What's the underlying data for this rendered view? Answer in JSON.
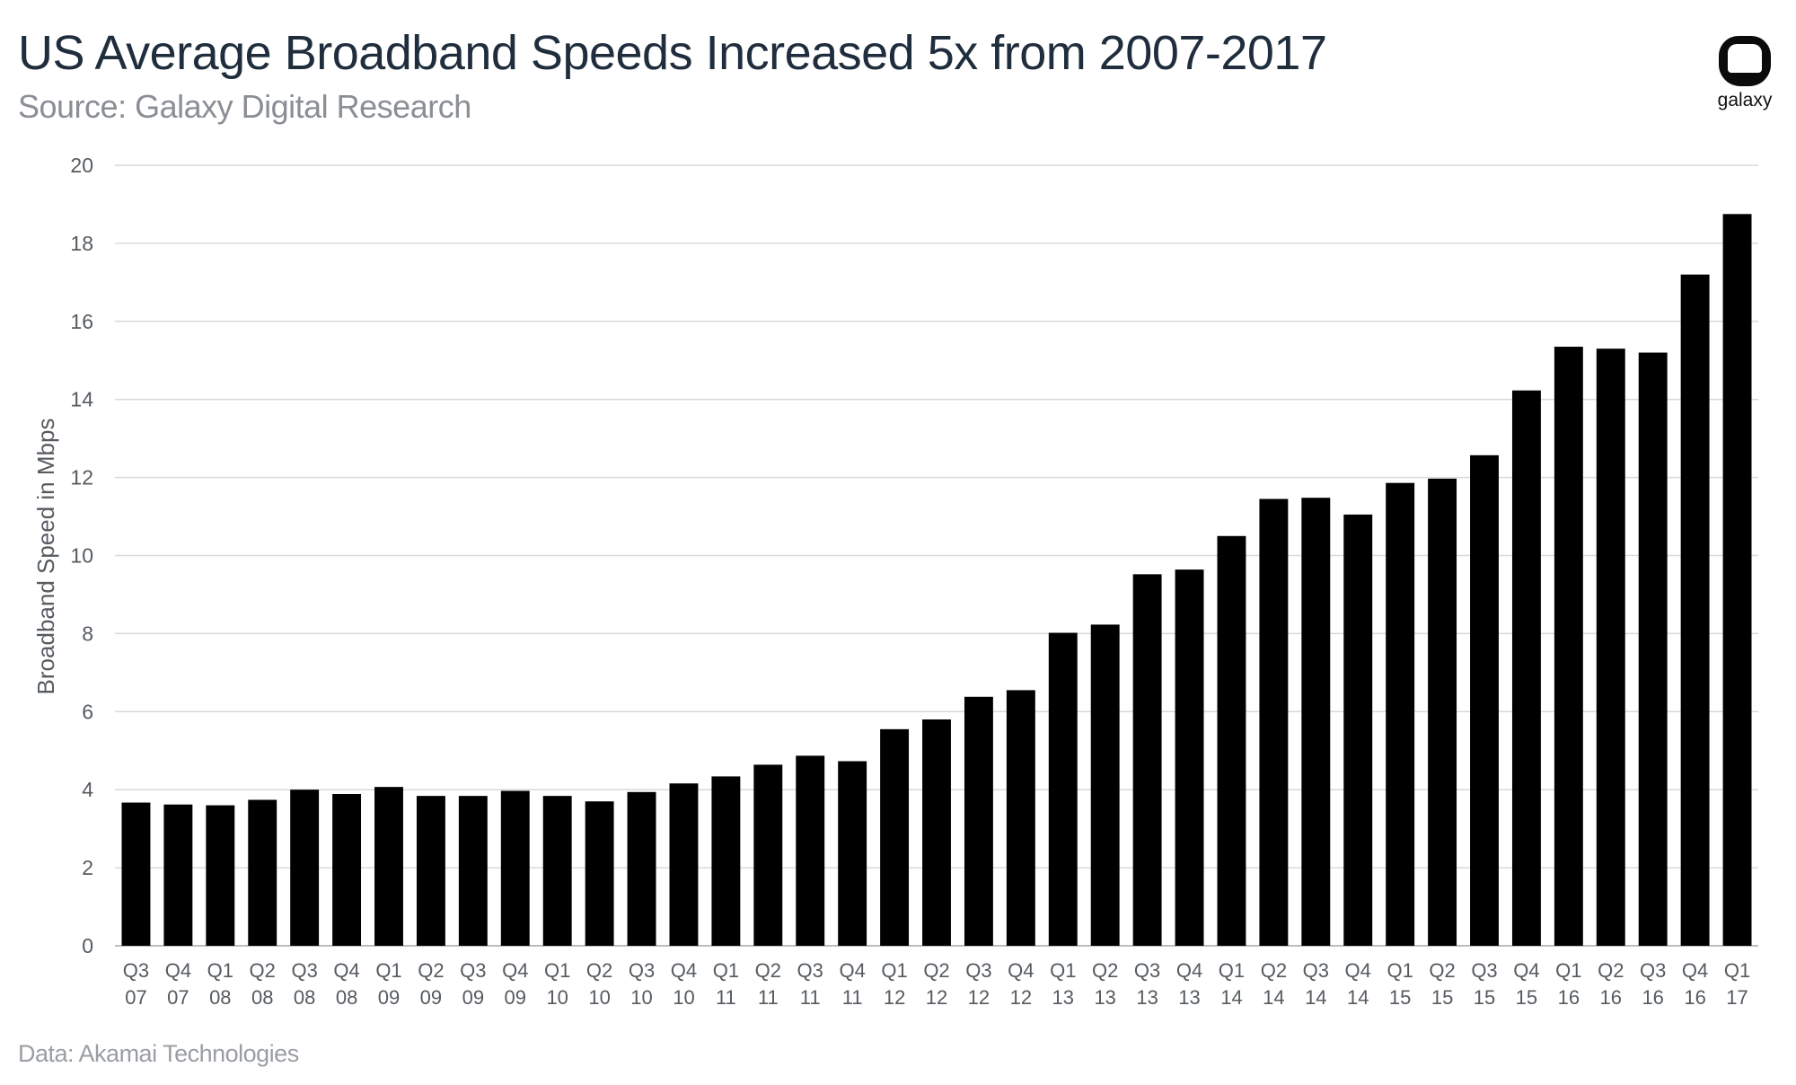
{
  "header": {
    "title": "US Average Broadband Speeds Increased 5x from 2007-2017",
    "subtitle": "Source: Galaxy Digital Research"
  },
  "footer": {
    "note": "Data: Akamai Technologies"
  },
  "logo": {
    "icon": "galaxy-logo-icon",
    "text": "galaxy"
  },
  "colors": {
    "bar": "#000000",
    "grid": "#d9d9d9",
    "title": "#1f2d3d"
  },
  "chart_data": {
    "type": "bar",
    "title": "US Average Broadband Speeds Increased 5x from 2007-2017",
    "xlabel": "",
    "ylabel": "Broadband Speed in Mbps",
    "ylim": [
      0,
      20
    ],
    "yticks": [
      0,
      2,
      4,
      6,
      8,
      10,
      12,
      14,
      16,
      18,
      20
    ],
    "grid": true,
    "categories": [
      [
        "Q3",
        "07"
      ],
      [
        "Q4",
        "07"
      ],
      [
        "Q1",
        "08"
      ],
      [
        "Q2",
        "08"
      ],
      [
        "Q3",
        "08"
      ],
      [
        "Q4",
        "08"
      ],
      [
        "Q1",
        "09"
      ],
      [
        "Q2",
        "09"
      ],
      [
        "Q3",
        "09"
      ],
      [
        "Q4",
        "09"
      ],
      [
        "Q1",
        "10"
      ],
      [
        "Q2",
        "10"
      ],
      [
        "Q3",
        "10"
      ],
      [
        "Q4",
        "10"
      ],
      [
        "Q1",
        "11"
      ],
      [
        "Q2",
        "11"
      ],
      [
        "Q3",
        "11"
      ],
      [
        "Q4",
        "11"
      ],
      [
        "Q1",
        "12"
      ],
      [
        "Q2",
        "12"
      ],
      [
        "Q3",
        "12"
      ],
      [
        "Q4",
        "12"
      ],
      [
        "Q1",
        "13"
      ],
      [
        "Q2",
        "13"
      ],
      [
        "Q3",
        "13"
      ],
      [
        "Q4",
        "13"
      ],
      [
        "Q1",
        "14"
      ],
      [
        "Q2",
        "14"
      ],
      [
        "Q3",
        "14"
      ],
      [
        "Q4",
        "14"
      ],
      [
        "Q1",
        "15"
      ],
      [
        "Q2",
        "15"
      ],
      [
        "Q3",
        "15"
      ],
      [
        "Q4",
        "15"
      ],
      [
        "Q1",
        "16"
      ],
      [
        "Q2",
        "16"
      ],
      [
        "Q3",
        "16"
      ],
      [
        "Q4",
        "16"
      ],
      [
        "Q1",
        "17"
      ]
    ],
    "values": [
      3.67,
      3.62,
      3.6,
      3.74,
      4.0,
      3.89,
      4.07,
      3.84,
      3.84,
      3.97,
      3.84,
      3.7,
      3.94,
      4.16,
      4.34,
      4.64,
      4.87,
      4.73,
      5.55,
      5.8,
      6.38,
      6.55,
      8.02,
      8.23,
      9.52,
      9.64,
      10.5,
      11.45,
      11.48,
      11.05,
      11.86,
      11.97,
      12.57,
      14.23,
      15.35,
      15.3,
      15.2,
      17.2,
      18.75
    ]
  }
}
